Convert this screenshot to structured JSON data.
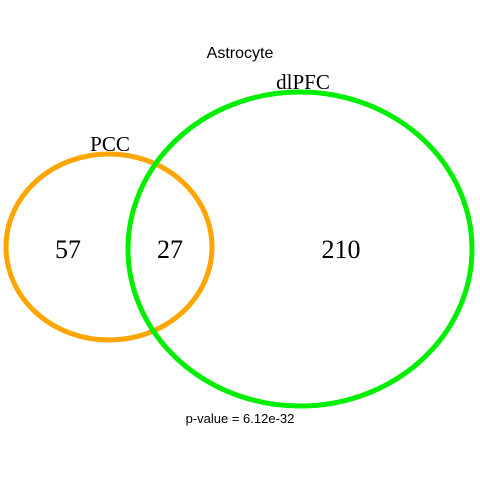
{
  "title": "Astrocyte",
  "sets": {
    "pcc": {
      "label": "PCC",
      "color": "#FFA500"
    },
    "dlpfc": {
      "label": "dlPFC",
      "color": "#00EE00"
    }
  },
  "counts": {
    "pcc_only": "57",
    "overlap": "27",
    "dlpfc_only": "210"
  },
  "footer": {
    "pvalue": "p-value = 6.12e-32"
  }
}
